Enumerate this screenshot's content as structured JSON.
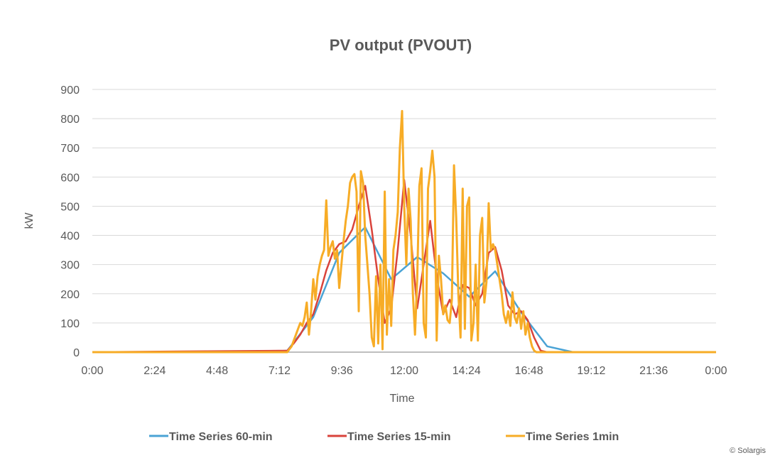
{
  "chart_data": {
    "type": "line",
    "title": "PV output (PVOUT)",
    "xlabel": "Time",
    "ylabel": "kW",
    "xlim": [
      "0:00",
      "24:00"
    ],
    "ylim": [
      0,
      900
    ],
    "x_tick_labels": [
      "0:00",
      "2:24",
      "4:48",
      "7:12",
      "9:36",
      "12:00",
      "14:24",
      "16:48",
      "19:12",
      "21:36",
      "0:00"
    ],
    "y_tick_labels": [
      "0",
      "100",
      "200",
      "300",
      "400",
      "500",
      "600",
      "700",
      "800",
      "900"
    ],
    "grid": "horizontal",
    "legend_position": "bottom",
    "colors": {
      "60min": "#4aa3d5",
      "15min": "#d9433b",
      "1min": "#f7ac26"
    },
    "series": [
      {
        "name": "Time Series 60-min",
        "x": [
          "0:30",
          "1:30",
          "2:30",
          "3:30",
          "4:30",
          "5:30",
          "6:30",
          "7:30",
          "8:30",
          "9:30",
          "10:30",
          "11:30",
          "12:30",
          "13:30",
          "14:30",
          "15:30",
          "16:30",
          "17:30",
          "18:30",
          "19:30",
          "20:30",
          "21:30",
          "22:30",
          "23:30"
        ],
        "values": [
          0,
          0,
          0,
          0,
          0,
          0,
          0,
          5,
          120,
          340,
          428,
          250,
          326,
          270,
          190,
          277,
          136,
          20,
          0,
          0,
          0,
          0,
          0,
          0
        ]
      },
      {
        "name": "Time Series 15-min",
        "x_start": "7:30",
        "x_step_min": 15,
        "values": [
          5,
          30,
          60,
          100,
          130,
          200,
          280,
          340,
          370,
          380,
          420,
          500,
          570,
          420,
          250,
          100,
          150,
          350,
          590,
          400,
          150,
          300,
          450,
          260,
          130,
          180,
          120,
          230,
          220,
          160,
          200,
          340,
          360,
          280,
          160,
          130,
          140,
          110,
          50,
          5,
          0
        ]
      },
      {
        "name": "Time Series 1min",
        "x_start": "7:30",
        "x_step_min": 5,
        "values": [
          0,
          10,
          20,
          40,
          60,
          80,
          100,
          90,
          120,
          170,
          60,
          140,
          250,
          180,
          260,
          300,
          330,
          350,
          520,
          330,
          360,
          380,
          320,
          350,
          220,
          300,
          380,
          450,
          500,
          580,
          600,
          610,
          550,
          140,
          620,
          580,
          400,
          300,
          200,
          50,
          20,
          260,
          30,
          300,
          10,
          550,
          60,
          250,
          90,
          350,
          400,
          480,
          700,
          826,
          500,
          300,
          560,
          450,
          200,
          60,
          250,
          570,
          630,
          100,
          50,
          560,
          620,
          690,
          600,
          40,
          330,
          250,
          130,
          160,
          110,
          100,
          180,
          640,
          460,
          200,
          50,
          560,
          80,
          500,
          530,
          40,
          100,
          300,
          40,
          400,
          460,
          170,
          240,
          510,
          350,
          370,
          350,
          300,
          250,
          200,
          130,
          100,
          140,
          90,
          205,
          120,
          100,
          150,
          80,
          140,
          60,
          100,
          50,
          20,
          5,
          0,
          0,
          0,
          0,
          0,
          0
        ]
      }
    ]
  },
  "footer": {
    "copyright": "© Solargis"
  }
}
